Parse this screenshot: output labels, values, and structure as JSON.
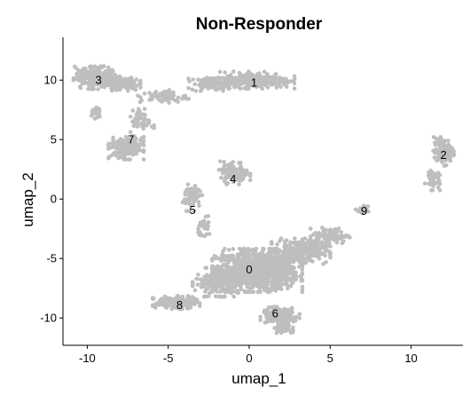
{
  "chart_data": {
    "type": "scatter",
    "title": "Non-Responder",
    "xlabel": "umap_1",
    "ylabel": "umap_2",
    "xlim": [
      -11.5,
      13.2
    ],
    "ylim": [
      -12.3,
      13.6
    ],
    "xticks": [
      -10,
      -5,
      0,
      5,
      10
    ],
    "yticks": [
      -10,
      -5,
      0,
      5,
      10
    ],
    "point_color": "#bebebe",
    "grid": false,
    "legend": "none",
    "clusters": [
      {
        "label": "0",
        "x": 0.0,
        "y": -5.9,
        "shape": [
          {
            "cx": 0.5,
            "cy": -6.0,
            "sx": 2.3,
            "sy": 1.5,
            "n": 1100
          },
          {
            "cx": -1.8,
            "cy": -7.0,
            "sx": 1.4,
            "sy": 1.0,
            "n": 220
          },
          {
            "cx": 3.2,
            "cy": -4.4,
            "sx": 1.5,
            "sy": 0.9,
            "n": 260
          },
          {
            "cx": 5.0,
            "cy": -3.1,
            "sx": 1.0,
            "sy": 0.6,
            "n": 90
          }
        ]
      },
      {
        "label": "1",
        "x": 0.3,
        "y": 9.8,
        "shape": [
          {
            "cx": 0.5,
            "cy": 10.0,
            "sx": 1.9,
            "sy": 0.6,
            "n": 260
          },
          {
            "cx": -2.3,
            "cy": 9.7,
            "sx": 1.2,
            "sy": 0.5,
            "n": 90
          },
          {
            "cx": -5.3,
            "cy": 8.6,
            "sx": 1.3,
            "sy": 0.5,
            "n": 60
          }
        ]
      },
      {
        "label": "2",
        "x": 12.0,
        "y": 3.7,
        "shape": [
          {
            "cx": 12.0,
            "cy": 4.0,
            "sx": 0.55,
            "sy": 1.0,
            "n": 100
          },
          {
            "cx": 11.3,
            "cy": 1.7,
            "sx": 0.4,
            "sy": 0.8,
            "n": 50
          }
        ]
      },
      {
        "label": "3",
        "x": -9.3,
        "y": 10.0,
        "shape": [
          {
            "cx": -9.4,
            "cy": 10.2,
            "sx": 1.2,
            "sy": 0.8,
            "n": 260
          },
          {
            "cx": -7.8,
            "cy": 9.7,
            "sx": 0.9,
            "sy": 0.5,
            "n": 100
          },
          {
            "cx": -9.5,
            "cy": 7.3,
            "sx": 0.3,
            "sy": 0.5,
            "n": 30
          }
        ]
      },
      {
        "label": "4",
        "x": -1.0,
        "y": 1.7,
        "shape": [
          {
            "cx": -0.9,
            "cy": 2.2,
            "sx": 0.8,
            "sy": 0.8,
            "n": 110
          }
        ]
      },
      {
        "label": "5",
        "x": -3.5,
        "y": -0.9,
        "shape": [
          {
            "cx": -3.5,
            "cy": 0.2,
            "sx": 0.5,
            "sy": 1.0,
            "n": 60
          },
          {
            "cx": -2.7,
            "cy": -2.4,
            "sx": 0.4,
            "sy": 0.8,
            "n": 30
          }
        ]
      },
      {
        "label": "6",
        "x": 1.6,
        "y": -9.6,
        "shape": [
          {
            "cx": 1.9,
            "cy": -9.8,
            "sx": 1.0,
            "sy": 0.6,
            "n": 200
          },
          {
            "cx": 2.1,
            "cy": -10.9,
            "sx": 0.5,
            "sy": 0.3,
            "n": 40
          }
        ]
      },
      {
        "label": "7",
        "x": -7.3,
        "y": 5.0,
        "shape": [
          {
            "cx": -7.6,
            "cy": 4.3,
            "sx": 0.9,
            "sy": 0.8,
            "n": 220
          },
          {
            "cx": -6.6,
            "cy": 6.6,
            "sx": 0.6,
            "sy": 0.8,
            "n": 50
          }
        ]
      },
      {
        "label": "8",
        "x": -4.3,
        "y": -8.9,
        "shape": [
          {
            "cx": -4.5,
            "cy": -8.7,
            "sx": 1.2,
            "sy": 0.45,
            "n": 200
          }
        ]
      },
      {
        "label": "9",
        "x": 7.1,
        "y": -1.0,
        "shape": [
          {
            "cx": 7.0,
            "cy": -0.9,
            "sx": 0.35,
            "sy": 0.4,
            "n": 15
          }
        ]
      }
    ]
  }
}
